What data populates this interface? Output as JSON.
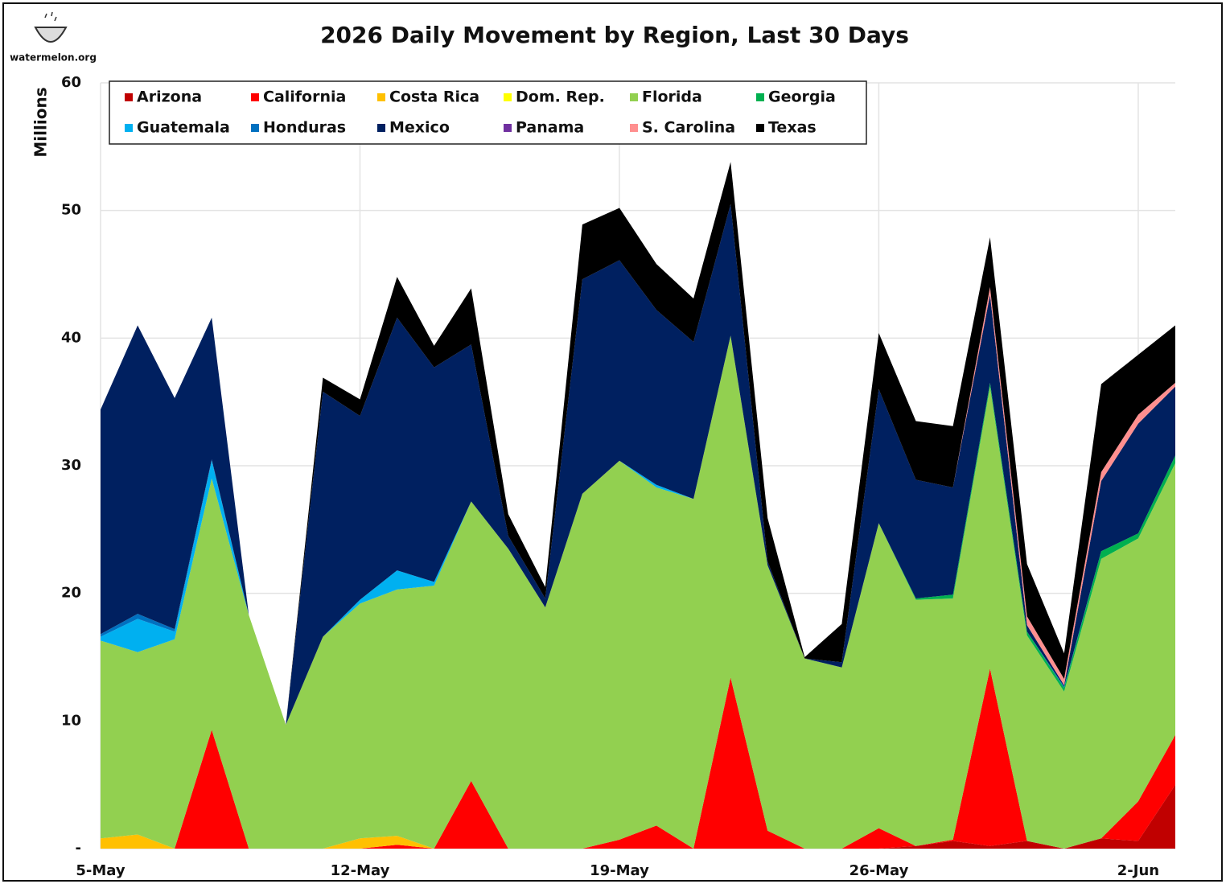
{
  "logo": "watermelon.org",
  "chart_data": {
    "type": "stacked_area",
    "title": "2026 Daily Movement by Region, Last 30 Days",
    "y_label": "Millions",
    "categories": [
      "5-May",
      null,
      null,
      null,
      null,
      null,
      null,
      "12-May",
      null,
      null,
      null,
      null,
      null,
      null,
      "19-May",
      null,
      null,
      null,
      null,
      null,
      null,
      "26-May",
      null,
      null,
      null,
      null,
      null,
      null,
      "2-Jun",
      null
    ],
    "ylim": [
      0,
      60
    ],
    "yticks": [
      {
        "value": 0,
        "label": "-"
      },
      10,
      20,
      30,
      40,
      50,
      60
    ],
    "grid": true,
    "legend": "top-left",
    "series": [
      {
        "name": "Arizona",
        "color": "#c00000",
        "values": [
          0,
          0,
          0,
          0,
          0,
          0,
          0,
          0,
          0,
          0,
          0,
          0,
          0,
          0,
          0,
          0,
          0,
          0,
          0,
          0,
          0,
          0,
          0.2,
          0.6,
          0.2,
          0.6,
          0,
          0.8,
          0.6,
          5.0
        ]
      },
      {
        "name": "California",
        "color": "#ff0000",
        "values": [
          0,
          0,
          0,
          9.3,
          0,
          0,
          0,
          0,
          0.3,
          0,
          5.3,
          0,
          0,
          0,
          0.7,
          1.8,
          0,
          13.4,
          1.4,
          0,
          0,
          1.6,
          0,
          0.1,
          13.9,
          0,
          0,
          0,
          3.1,
          3.9
        ]
      },
      {
        "name": "Costa Rica",
        "color": "#ffc000",
        "values": [
          0.8,
          1.1,
          0,
          0,
          0,
          0,
          0,
          0.8,
          0.7,
          0,
          0,
          0,
          0,
          0,
          0,
          0,
          0,
          0,
          0,
          0,
          0,
          0,
          0,
          0,
          0,
          0,
          0,
          0,
          0,
          0
        ]
      },
      {
        "name": "Dom. Rep.",
        "color": "#ffff00",
        "values": [
          0,
          0,
          0,
          0,
          0,
          0,
          0,
          0,
          0,
          0,
          0,
          0,
          0,
          0,
          0,
          0,
          0,
          0,
          0,
          0,
          0,
          0,
          0,
          0,
          0,
          0,
          0,
          0,
          0,
          0
        ]
      },
      {
        "name": "Florida",
        "color": "#92d050",
        "values": [
          15.5,
          14.3,
          16.4,
          19.7,
          18.3,
          9.7,
          16.6,
          18.4,
          19.3,
          20.6,
          21.9,
          23.5,
          18.9,
          27.8,
          29.7,
          26.5,
          27.4,
          26.8,
          20.8,
          14.9,
          14.2,
          23.9,
          19.3,
          18.9,
          22.1,
          16.1,
          12.3,
          21.9,
          20.6,
          21.3
        ]
      },
      {
        "name": "Georgia",
        "color": "#00b050",
        "values": [
          0,
          0,
          0,
          0,
          0,
          0,
          0,
          0,
          0,
          0,
          0,
          0,
          0,
          0,
          0,
          0,
          0,
          0,
          0,
          0,
          0,
          0,
          0.1,
          0.3,
          0.3,
          0.3,
          0.3,
          0.6,
          0.4,
          0.6
        ]
      },
      {
        "name": "Guatemala",
        "color": "#00b0f0",
        "values": [
          0.3,
          2.6,
          0.6,
          1.4,
          0,
          0,
          0,
          0.3,
          1.5,
          0.3,
          0,
          0,
          0,
          0,
          0,
          0.2,
          0,
          0,
          0,
          0,
          0,
          0,
          0,
          0,
          0,
          0,
          0,
          0,
          0,
          0
        ]
      },
      {
        "name": "Honduras",
        "color": "#0070c0",
        "values": [
          0.2,
          0.4,
          0.2,
          0.1,
          0,
          0,
          0,
          0,
          0,
          0,
          0,
          0,
          0,
          0,
          0,
          0,
          0,
          0,
          0,
          0,
          0,
          0,
          0,
          0,
          0,
          0,
          0.1,
          0,
          0,
          0
        ]
      },
      {
        "name": "Mexico",
        "color": "#002060",
        "values": [
          17.6,
          22.6,
          18.1,
          11.1,
          0,
          0,
          19.2,
          14.4,
          19.8,
          16.8,
          12.3,
          1.0,
          0.7,
          16.8,
          15.7,
          13.7,
          12.3,
          10.3,
          0.3,
          0,
          0.4,
          10.5,
          9.3,
          8.4,
          6.9,
          0.5,
          0.1,
          5.5,
          8.6,
          5.4
        ]
      },
      {
        "name": "Panama",
        "color": "#7030a0",
        "values": [
          0,
          0,
          0,
          0,
          0,
          0,
          0,
          0,
          0,
          0,
          0,
          0,
          0,
          0,
          0,
          0,
          0,
          0,
          0,
          0,
          0,
          0,
          0,
          0,
          0,
          0,
          0,
          0,
          0,
          0
        ]
      },
      {
        "name": "S. Carolina",
        "color": "#ff8f8f",
        "values": [
          0,
          0,
          0,
          0,
          0,
          0,
          0,
          0,
          0,
          0,
          0,
          0,
          0,
          0,
          0,
          0,
          0,
          0,
          0,
          0,
          0,
          0,
          0,
          0,
          0.6,
          0.7,
          0.5,
          0.7,
          0.7,
          0.3
        ]
      },
      {
        "name": "Texas",
        "color": "#000000",
        "values": [
          0,
          0,
          0,
          0,
          0,
          0,
          1.1,
          1.3,
          3.2,
          1.7,
          4.4,
          1.7,
          0.9,
          4.3,
          4.1,
          3.6,
          3.4,
          3.3,
          3.4,
          0.1,
          3.0,
          4.4,
          4.6,
          4.8,
          3.9,
          4.1,
          2.0,
          6.9,
          4.7,
          4.5
        ]
      }
    ]
  }
}
